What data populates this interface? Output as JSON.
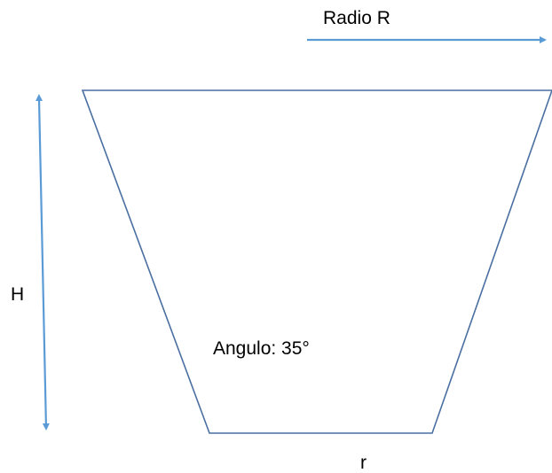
{
  "labels": {
    "radius_top": "Radio R",
    "height": "H",
    "angle": "Angulo: 35°",
    "radius_bottom": "r"
  },
  "colors": {
    "trapezoid_stroke": "#4a6fa0",
    "arrow": "#5b9bd5",
    "text": "#000000"
  }
}
